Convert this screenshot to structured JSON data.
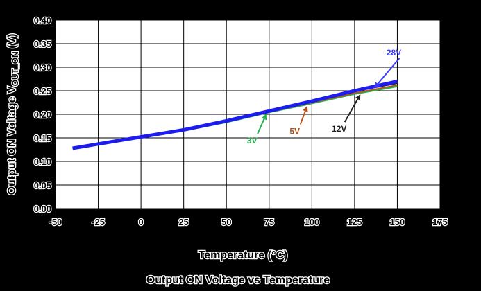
{
  "chart_data": {
    "type": "line",
    "title": "Output ON Voltage vs Temperature",
    "xlabel": "Temperature (°C)",
    "ylabel": "Output ON Voltage V",
    "ylabel_sub": "OUT_ON",
    "ylabel_unit": " (V)",
    "xlim": [
      -50,
      175
    ],
    "ylim": [
      0,
      0.4
    ],
    "xticks": [
      "-50",
      "-25",
      "0",
      "25",
      "50",
      "75",
      "100",
      "125",
      "150",
      "175"
    ],
    "yticks": [
      "0.00",
      "0.05",
      "0.10",
      "0.15",
      "0.20",
      "0.25",
      "0.30",
      "0.35",
      "0.40"
    ],
    "grid": true,
    "series": [
      {
        "name": "3V",
        "color": "#22b14c",
        "x": [
          -40,
          0,
          25,
          50,
          75,
          100,
          125,
          150
        ],
        "y": [
          0.128,
          0.151,
          0.165,
          0.183,
          0.204,
          0.223,
          0.243,
          0.259
        ]
      },
      {
        "name": "5V",
        "color": "#b5541c",
        "x": [
          -40,
          0,
          25,
          50,
          75,
          100,
          125,
          150
        ],
        "y": [
          0.128,
          0.151,
          0.166,
          0.184,
          0.205,
          0.225,
          0.245,
          0.262
        ]
      },
      {
        "name": "12V",
        "color": "#202020",
        "x": [
          -40,
          0,
          25,
          50,
          75,
          100,
          125,
          150
        ],
        "y": [
          0.128,
          0.151,
          0.167,
          0.185,
          0.206,
          0.227,
          0.249,
          0.266
        ]
      },
      {
        "name": "28V",
        "color": "#1c1cf0",
        "x": [
          -40,
          0,
          25,
          50,
          75,
          100,
          125,
          150
        ],
        "y": [
          0.128,
          0.152,
          0.167,
          0.186,
          0.207,
          0.228,
          0.25,
          0.27
        ]
      }
    ],
    "annotations": [
      {
        "text": "3V",
        "color": "#22b14c",
        "series": "3V",
        "x": 73,
        "y": 0.198,
        "label_at_x": 65,
        "label_at_y": 0.138
      },
      {
        "text": "5V",
        "color": "#b5541c",
        "series": "5V",
        "x": 97,
        "y": 0.215,
        "label_at_x": 90,
        "label_at_y": 0.158
      },
      {
        "text": "12V",
        "color": "#202020",
        "series": "12V",
        "x": 128,
        "y": 0.24,
        "label_at_x": 116,
        "label_at_y": 0.163
      },
      {
        "text": "28V",
        "color": "#3b3bff",
        "series": "28V",
        "x": 137,
        "y": 0.258,
        "label_at_x": 148,
        "label_at_y": 0.325
      }
    ]
  }
}
